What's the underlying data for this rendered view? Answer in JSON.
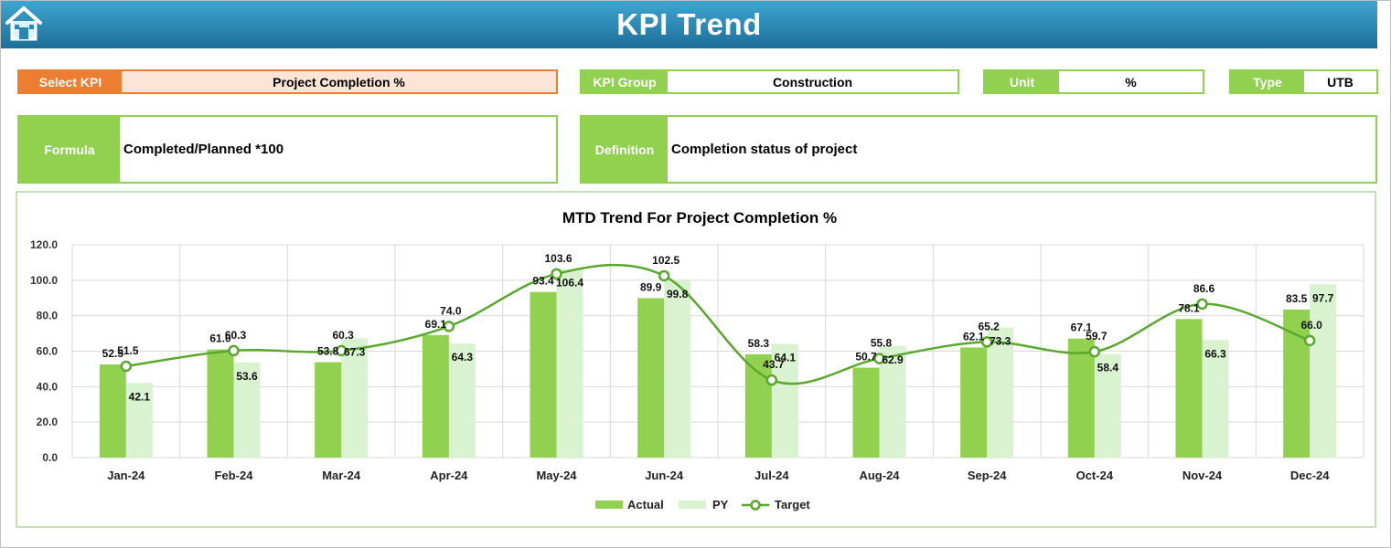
{
  "header": {
    "title": "KPI Trend"
  },
  "fields": {
    "select_kpi": {
      "label": "Select KPI",
      "value": "Project Completion %"
    },
    "kpi_group": {
      "label": "KPI Group",
      "value": "Construction"
    },
    "unit": {
      "label": "Unit",
      "value": "%"
    },
    "type": {
      "label": "Type",
      "value": "UTB"
    },
    "formula": {
      "label": "Formula",
      "value": "Completed/Planned *100"
    },
    "definition": {
      "label": "Definition",
      "value": "Completion status of project"
    }
  },
  "colors": {
    "actual": "#92d050",
    "py": "#d9f2d0",
    "target": "#5aa82e",
    "header": "#2b86b4",
    "select": "#ed7d31"
  },
  "chart_data": {
    "type": "bar",
    "title": "MTD Trend For Project Completion %",
    "categories": [
      "Jan-24",
      "Feb-24",
      "Mar-24",
      "Apr-24",
      "May-24",
      "Jun-24",
      "Jul-24",
      "Aug-24",
      "Sep-24",
      "Oct-24",
      "Nov-24",
      "Dec-24"
    ],
    "series": [
      {
        "name": "Actual",
        "kind": "bar",
        "values": [
          52.5,
          61.0,
          53.8,
          69.1,
          93.4,
          89.9,
          58.3,
          50.7,
          62.1,
          67.1,
          78.1,
          83.5
        ]
      },
      {
        "name": "PY",
        "kind": "bar",
        "values": [
          42.1,
          53.6,
          67.3,
          64.3,
          106.4,
          99.8,
          64.1,
          62.9,
          73.3,
          58.4,
          66.3,
          97.7
        ]
      },
      {
        "name": "Target",
        "kind": "line",
        "values": [
          51.5,
          60.3,
          60.3,
          74.0,
          103.6,
          102.5,
          43.7,
          55.8,
          65.2,
          59.7,
          86.6,
          66.0
        ]
      }
    ],
    "yticks": [
      "0.0",
      "20.0",
      "40.0",
      "60.0",
      "80.0",
      "100.0",
      "120.0"
    ],
    "ylim": [
      0,
      120
    ],
    "grid": true,
    "legend": "bottom"
  }
}
